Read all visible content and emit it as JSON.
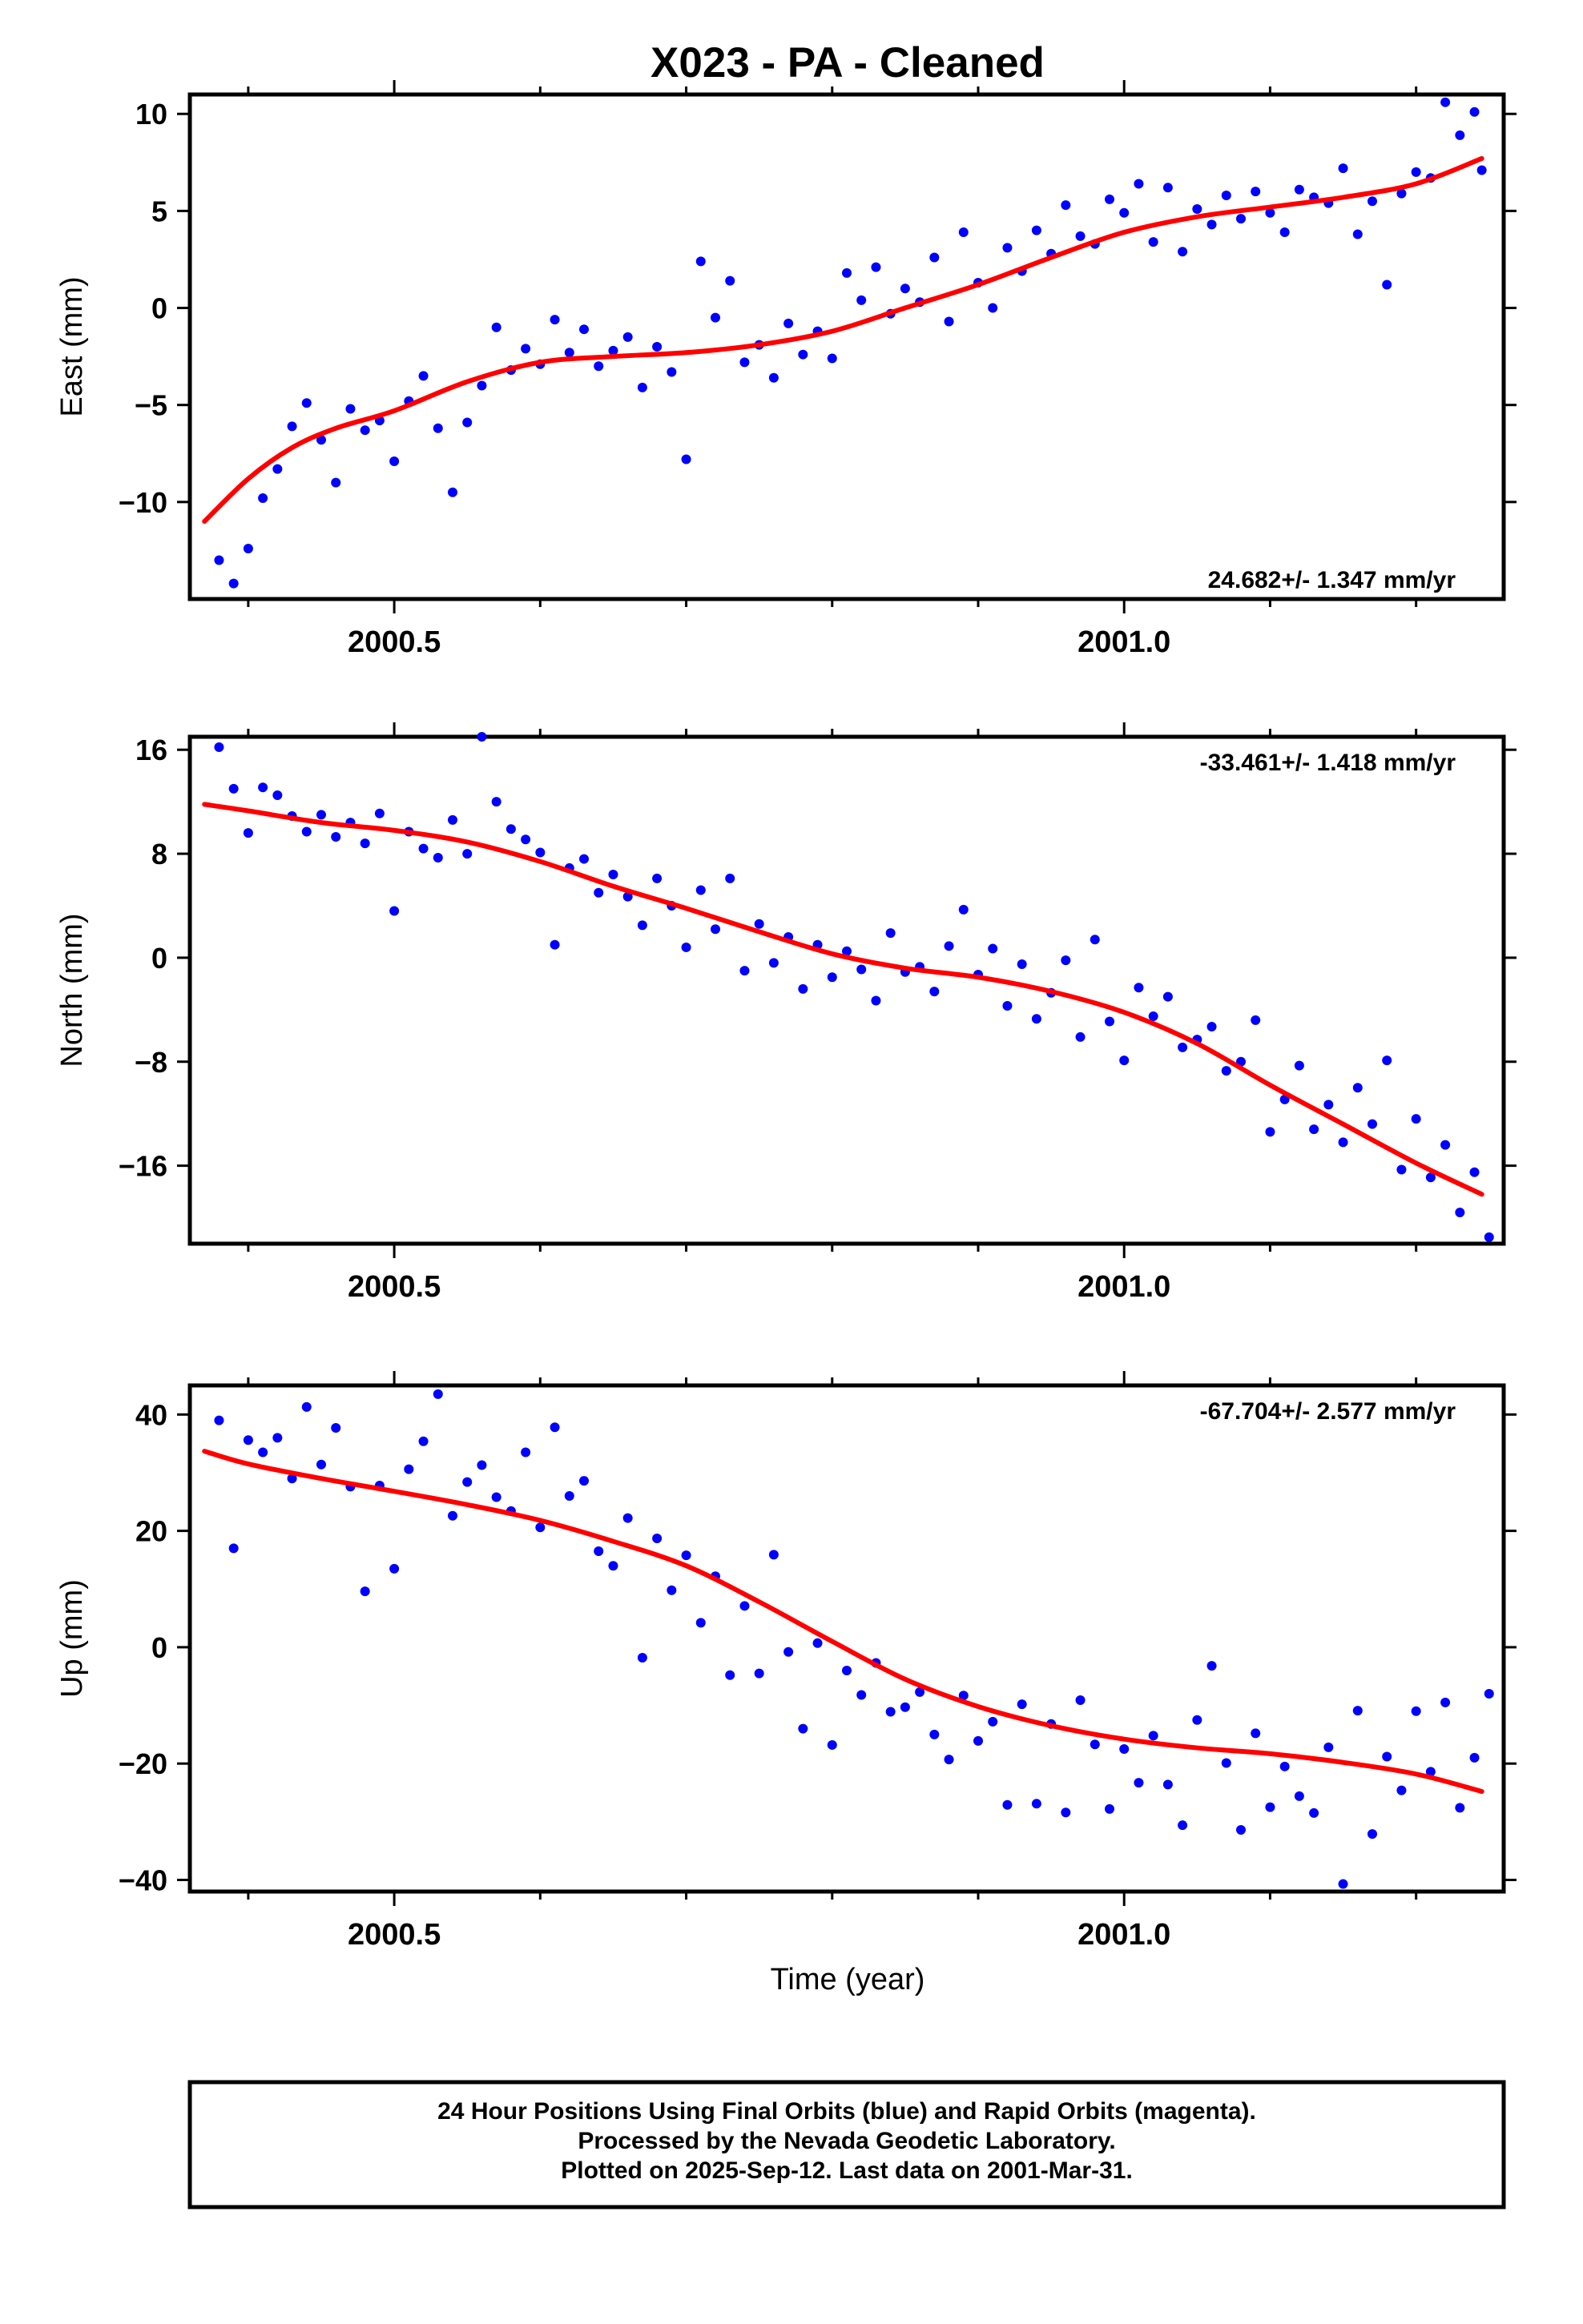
{
  "title": "X023  - PA - Cleaned",
  "colors": {
    "points": "#0000ff",
    "fit": "#ff0000",
    "frame": "#000000"
  },
  "xaxis": {
    "label": "Time (year)",
    "range": [
      2000.36,
      2001.26
    ],
    "major_ticks": [
      2000.5,
      2001.0
    ],
    "major_tick_labels": [
      "2000.5",
      "2001.0"
    ],
    "minor_ticks": [
      2000.4,
      2000.6,
      2000.7,
      2000.8,
      2000.9,
      2001.1,
      2001.2
    ]
  },
  "footer": {
    "line1": "24 Hour Positions Using Final Orbits (blue) and Rapid Orbits (magenta).",
    "line2": "Processed by the Nevada Geodetic Laboratory.",
    "line3": "Plotted on 2025-Sep-12. Last data on 2001-Mar-31."
  },
  "chart_data": [
    {
      "type": "scatter",
      "panel": "east",
      "ylabel": "East (mm)",
      "ylim": [
        -15,
        11
      ],
      "yticks": [
        10,
        5,
        0,
        -5,
        -10
      ],
      "ytick_labels": [
        "10",
        "5",
        "0",
        "−5",
        "−10"
      ],
      "rate_label": "24.682+/- 1.347 mm/yr",
      "rate_position": "bottom-right",
      "series": [
        {
          "name": "Final Orbits",
          "marker": "dot",
          "x": [
            2000.38,
            2000.39,
            2000.4,
            2000.41,
            2000.42,
            2000.43,
            2000.44,
            2000.45,
            2000.46,
            2000.47,
            2000.48,
            2000.49,
            2000.5,
            2000.51,
            2000.52,
            2000.53,
            2000.54,
            2000.55,
            2000.56,
            2000.57,
            2000.58,
            2000.59,
            2000.6,
            2000.61,
            2000.62,
            2000.63,
            2000.64,
            2000.65,
            2000.66,
            2000.67,
            2000.68,
            2000.69,
            2000.7,
            2000.71,
            2000.72,
            2000.73,
            2000.74,
            2000.75,
            2000.76,
            2000.77,
            2000.78,
            2000.79,
            2000.8,
            2000.81,
            2000.82,
            2000.83,
            2000.84,
            2000.85,
            2000.86,
            2000.87,
            2000.88,
            2000.89,
            2000.9,
            2000.91,
            2000.92,
            2000.93,
            2000.94,
            2000.95,
            2000.96,
            2000.97,
            2000.98,
            2000.99,
            2001.0,
            2001.01,
            2001.02,
            2001.03,
            2001.04,
            2001.05,
            2001.06,
            2001.07,
            2001.08,
            2001.09,
            2001.1,
            2001.11,
            2001.12,
            2001.13,
            2001.14,
            2001.15,
            2001.16,
            2001.17,
            2001.18,
            2001.19,
            2001.2,
            2001.21,
            2001.22,
            2001.23,
            2001.24,
            2001.245
          ],
          "y": [
            -13.0,
            -14.2,
            -12.4,
            -9.8,
            -8.3,
            -6.1,
            -4.9,
            -6.8,
            -9.0,
            -5.2,
            -6.3,
            -5.8,
            -7.9,
            -4.8,
            -3.5,
            -6.2,
            -9.5,
            -5.9,
            -4.0,
            -1.0,
            -3.2,
            -2.1,
            -2.9,
            -0.6,
            -2.3,
            -1.1,
            -3.0,
            -2.2,
            -1.5,
            -4.1,
            -2.0,
            -3.3,
            -7.8,
            2.4,
            -0.5,
            1.4,
            -2.8,
            -1.9,
            -3.6,
            -0.8,
            -2.4,
            -1.2,
            -2.6,
            1.8,
            0.4,
            2.1,
            -0.3,
            1.0,
            0.3,
            2.6,
            -0.7,
            3.9,
            1.3,
            0.0,
            3.1,
            1.9,
            4.0,
            2.8,
            5.3,
            3.7,
            3.3,
            5.6,
            4.9,
            6.4,
            3.4,
            6.2,
            2.9,
            5.1,
            4.3,
            5.8,
            4.6,
            6.0,
            4.9,
            3.9,
            6.1,
            5.7,
            5.4,
            7.2,
            3.8,
            5.5,
            1.2,
            5.9,
            7.0,
            6.7,
            10.6,
            8.9,
            10.1,
            7.1
          ]
        },
        {
          "name": "Fit",
          "marker": "line",
          "x": [
            2000.37,
            2000.4,
            2000.43,
            2000.46,
            2000.5,
            2000.55,
            2000.6,
            2000.65,
            2000.7,
            2000.75,
            2000.8,
            2000.85,
            2000.9,
            2000.95,
            2001.0,
            2001.05,
            2001.1,
            2001.15,
            2001.2,
            2001.245
          ],
          "y": [
            -11.0,
            -8.8,
            -7.2,
            -6.2,
            -5.3,
            -3.8,
            -2.8,
            -2.5,
            -2.3,
            -1.9,
            -1.2,
            0.0,
            1.2,
            2.6,
            3.9,
            4.7,
            5.2,
            5.7,
            6.4,
            7.7
          ]
        }
      ]
    },
    {
      "type": "scatter",
      "panel": "north",
      "ylabel": "North (mm)",
      "ylim": [
        -22,
        17
      ],
      "yticks": [
        16,
        8,
        0,
        -8,
        -16
      ],
      "ytick_labels": [
        "16",
        "8",
        "0",
        "−8",
        "−16"
      ],
      "rate_label": "-33.461+/- 1.418 mm/yr",
      "rate_position": "top-right",
      "series": [
        {
          "name": "Final Orbits",
          "marker": "dot",
          "x": [
            2000.38,
            2000.39,
            2000.4,
            2000.41,
            2000.42,
            2000.43,
            2000.44,
            2000.45,
            2000.46,
            2000.47,
            2000.48,
            2000.49,
            2000.5,
            2000.51,
            2000.52,
            2000.53,
            2000.54,
            2000.55,
            2000.56,
            2000.57,
            2000.58,
            2000.59,
            2000.6,
            2000.61,
            2000.62,
            2000.63,
            2000.64,
            2000.65,
            2000.66,
            2000.67,
            2000.68,
            2000.69,
            2000.7,
            2000.71,
            2000.72,
            2000.73,
            2000.74,
            2000.75,
            2000.76,
            2000.77,
            2000.78,
            2000.79,
            2000.8,
            2000.81,
            2000.82,
            2000.83,
            2000.84,
            2000.85,
            2000.86,
            2000.87,
            2000.88,
            2000.89,
            2000.9,
            2000.91,
            2000.92,
            2000.93,
            2000.94,
            2000.95,
            2000.96,
            2000.97,
            2000.98,
            2000.99,
            2001.0,
            2001.01,
            2001.02,
            2001.03,
            2001.04,
            2001.05,
            2001.06,
            2001.07,
            2001.08,
            2001.09,
            2001.1,
            2001.11,
            2001.12,
            2001.13,
            2001.14,
            2001.15,
            2001.16,
            2001.17,
            2001.18,
            2001.19,
            2001.2,
            2001.21,
            2001.22,
            2001.23,
            2001.24,
            2001.25
          ],
          "y": [
            16.2,
            13.0,
            9.6,
            13.1,
            12.5,
            10.9,
            9.7,
            11.0,
            9.3,
            10.4,
            8.8,
            11.1,
            3.6,
            9.7,
            8.4,
            7.7,
            10.6,
            8.0,
            17.0,
            12.0,
            9.9,
            9.1,
            8.1,
            1.0,
            6.9,
            7.6,
            5.0,
            6.4,
            4.7,
            2.5,
            6.1,
            4.0,
            0.8,
            5.2,
            2.2,
            6.1,
            -1.0,
            2.6,
            -0.4,
            1.6,
            -2.4,
            1.0,
            -1.5,
            0.5,
            -0.9,
            -3.3,
            1.9,
            -1.1,
            -0.7,
            -2.6,
            0.9,
            3.7,
            -1.3,
            0.7,
            -3.7,
            -0.5,
            -4.7,
            -2.7,
            -0.2,
            -6.1,
            1.4,
            -4.9,
            -7.9,
            -2.3,
            -4.5,
            -3.0,
            -6.9,
            -6.3,
            -5.3,
            -8.7,
            -8.0,
            -4.8,
            -13.4,
            -10.9,
            -8.3,
            -13.2,
            -11.3,
            -14.2,
            -10.0,
            -12.8,
            -7.9,
            -16.3,
            -12.4,
            -16.9,
            -14.4,
            -19.6,
            -16.5,
            -21.5
          ]
        },
        {
          "name": "Fit",
          "marker": "line",
          "x": [
            2000.37,
            2000.4,
            2000.45,
            2000.5,
            2000.55,
            2000.6,
            2000.65,
            2000.7,
            2000.75,
            2000.8,
            2000.85,
            2000.9,
            2000.95,
            2001.0,
            2001.05,
            2001.1,
            2001.15,
            2001.2,
            2001.245
          ],
          "y": [
            11.8,
            11.3,
            10.4,
            9.8,
            8.9,
            7.4,
            5.5,
            3.8,
            2.0,
            0.3,
            -0.8,
            -1.5,
            -2.6,
            -4.2,
            -6.6,
            -9.8,
            -12.8,
            -15.8,
            -18.2
          ]
        }
      ]
    },
    {
      "type": "scatter",
      "panel": "up",
      "ylabel": "Up (mm)",
      "ylim": [
        -42,
        45
      ],
      "yticks": [
        40,
        20,
        0,
        -20,
        -40
      ],
      "ytick_labels": [
        "40",
        "20",
        "0",
        "−20",
        "−40"
      ],
      "rate_label": "-67.704+/- 2.577 mm/yr",
      "rate_position": "top-right",
      "series": [
        {
          "name": "Final Orbits",
          "marker": "dot",
          "x": [
            2000.38,
            2000.39,
            2000.4,
            2000.41,
            2000.42,
            2000.43,
            2000.44,
            2000.45,
            2000.46,
            2000.47,
            2000.48,
            2000.49,
            2000.5,
            2000.51,
            2000.52,
            2000.53,
            2000.54,
            2000.55,
            2000.56,
            2000.57,
            2000.58,
            2000.59,
            2000.6,
            2000.61,
            2000.62,
            2000.63,
            2000.64,
            2000.65,
            2000.66,
            2000.67,
            2000.68,
            2000.69,
            2000.7,
            2000.71,
            2000.72,
            2000.73,
            2000.74,
            2000.75,
            2000.76,
            2000.77,
            2000.78,
            2000.79,
            2000.8,
            2000.81,
            2000.82,
            2000.83,
            2000.84,
            2000.85,
            2000.86,
            2000.87,
            2000.88,
            2000.89,
            2000.9,
            2000.91,
            2000.92,
            2000.93,
            2000.94,
            2000.95,
            2000.96,
            2000.97,
            2000.98,
            2000.99,
            2001.0,
            2001.01,
            2001.02,
            2001.03,
            2001.04,
            2001.05,
            2001.06,
            2001.07,
            2001.08,
            2001.09,
            2001.1,
            2001.11,
            2001.12,
            2001.13,
            2001.14,
            2001.15,
            2001.16,
            2001.17,
            2001.18,
            2001.19,
            2001.2,
            2001.21,
            2001.22,
            2001.23,
            2001.24,
            2001.25
          ],
          "y": [
            39.0,
            17.0,
            35.6,
            33.5,
            36.0,
            29.0,
            41.3,
            31.4,
            37.7,
            27.6,
            9.6,
            27.8,
            13.5,
            30.6,
            35.4,
            43.5,
            22.6,
            28.4,
            31.3,
            25.8,
            23.4,
            33.5,
            20.6,
            37.8,
            26.0,
            28.6,
            16.5,
            14.0,
            22.2,
            -1.8,
            18.7,
            9.8,
            15.8,
            4.2,
            12.2,
            -4.8,
            7.1,
            -4.5,
            15.9,
            -0.8,
            -14.0,
            0.7,
            -16.8,
            -4.0,
            -8.2,
            -2.7,
            -11.1,
            -10.3,
            -7.7,
            -15.0,
            -19.3,
            -8.3,
            -16.1,
            -12.8,
            -27.1,
            -9.8,
            -26.9,
            -13.2,
            -28.4,
            -9.1,
            -16.7,
            -27.8,
            -17.5,
            -23.3,
            -15.2,
            -23.6,
            -30.6,
            -12.5,
            -3.2,
            -19.9,
            -31.4,
            -14.8,
            -27.5,
            -20.5,
            -25.6,
            -28.5,
            -17.2,
            -40.7,
            -10.9,
            -32.1,
            -18.8,
            -24.6,
            -11.0,
            -21.4,
            -9.5,
            -27.6,
            -19.0,
            -8.0
          ]
        },
        {
          "name": "Fit",
          "marker": "line",
          "x": [
            2000.37,
            2000.4,
            2000.45,
            2000.5,
            2000.55,
            2000.6,
            2000.65,
            2000.7,
            2000.75,
            2000.8,
            2000.85,
            2000.9,
            2000.95,
            2001.0,
            2001.05,
            2001.1,
            2001.15,
            2001.2,
            2001.245
          ],
          "y": [
            33.7,
            31.5,
            29.0,
            26.8,
            24.5,
            21.8,
            18.2,
            14.0,
            7.8,
            1.0,
            -5.5,
            -10.2,
            -13.5,
            -15.8,
            -17.3,
            -18.3,
            -19.8,
            -21.8,
            -24.8
          ]
        }
      ]
    }
  ]
}
